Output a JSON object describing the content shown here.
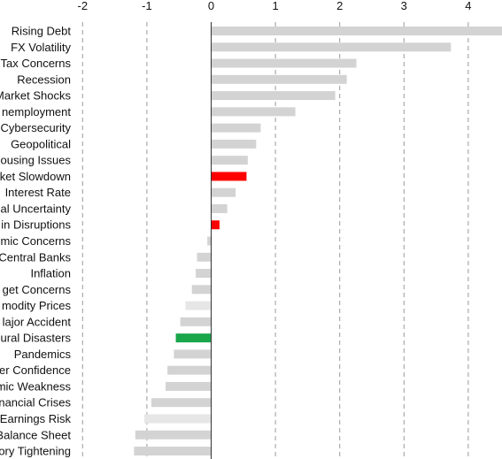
{
  "chart_data": {
    "type": "bar",
    "orientation": "horizontal",
    "title": "",
    "xlabel": "",
    "ylabel": "",
    "xlim": [
      -2,
      4.5
    ],
    "x_ticks": [
      -2,
      -1,
      0,
      1,
      2,
      3,
      4
    ],
    "grid": "vertical dashed",
    "categories": [
      "Rising Debt",
      "FX Volatility",
      "Tax Concerns",
      "Recession",
      "Market Shocks",
      "Unemployment",
      "Cybersecurity",
      "Geopolitical",
      "Housing Issues",
      "Market Slowdown",
      "Interest Rate",
      "Political Uncertainty",
      "Supply Chain Disruptions",
      "Demographic Concerns",
      "Central Banks",
      "Inflation",
      "Budget Concerns",
      "Commodity Prices",
      "Major Accident",
      "Natural Disasters",
      "Pandemics",
      "Consumer Confidence",
      "Economic Weakness",
      "Financial Crises",
      "Earnings Risk",
      "Balance Sheet",
      "Regulatory Tightening"
    ],
    "display_labels": [
      "Rising Debt",
      "FX Volatility",
      "Tax Concerns",
      "Recession",
      "Market Shocks",
      "nemployment",
      "Cybersecurity",
      "Geopolitical",
      "ousing Issues",
      "ket Slowdown",
      "Interest Rate",
      "al Uncertainty",
      "in Disruptions",
      "mic Concerns",
      "Central Banks",
      "Inflation",
      "get Concerns",
      "modity Prices",
      "lajor Accident",
      "ural Disasters",
      "Pandemics",
      "er Confidence",
      "mic Weakness",
      "nancial Crises",
      "Earnings Risk",
      "Balance Sheet",
      "ory Tightening"
    ],
    "values": [
      4.55,
      3.73,
      2.26,
      2.11,
      1.93,
      1.31,
      0.77,
      0.7,
      0.57,
      0.55,
      0.38,
      0.25,
      0.13,
      -0.06,
      -0.22,
      -0.24,
      -0.3,
      -0.4,
      -0.48,
      -0.55,
      -0.58,
      -0.68,
      -0.71,
      -0.93,
      -1.04,
      -1.18,
      -1.2
    ],
    "colors": [
      "#d3d3d3",
      "#d3d3d3",
      "#d3d3d3",
      "#d3d3d3",
      "#d3d3d3",
      "#d3d3d3",
      "#d3d3d3",
      "#d3d3d3",
      "#d3d3d3",
      "#ff0000",
      "#d3d3d3",
      "#d3d3d3",
      "#ff0000",
      "#d3d3d3",
      "#d3d3d3",
      "#d3d3d3",
      "#d3d3d3",
      "#e6e6e6",
      "#d3d3d3",
      "#1aa64b",
      "#d3d3d3",
      "#d3d3d3",
      "#d3d3d3",
      "#d3d3d3",
      "#e6e6e6",
      "#d3d3d3",
      "#d3d3d3"
    ]
  }
}
